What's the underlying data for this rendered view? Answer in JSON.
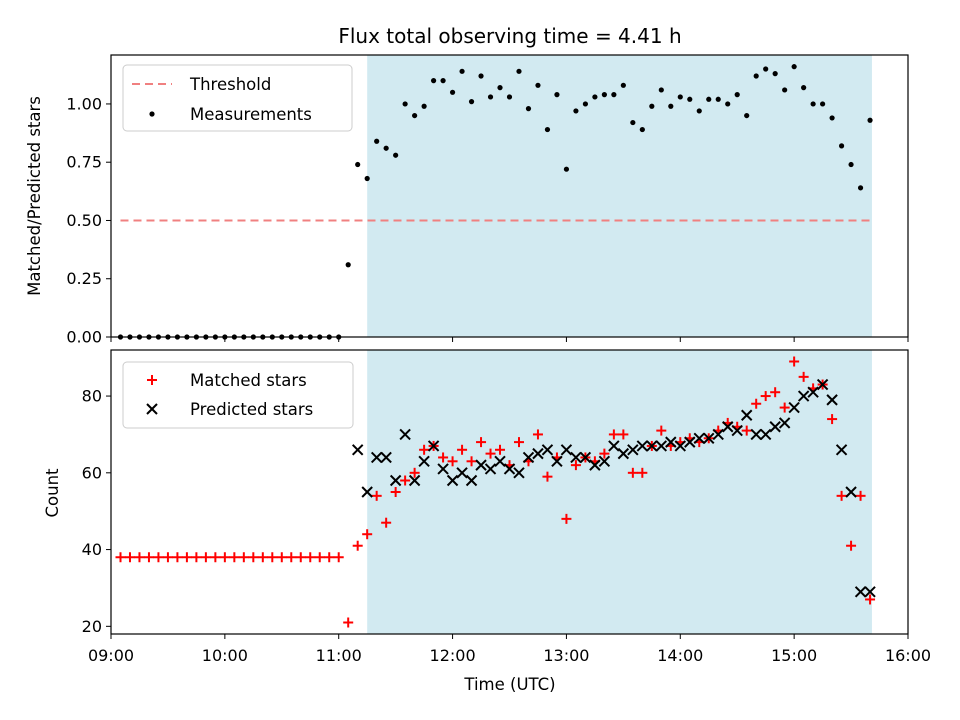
{
  "chart_data": [
    {
      "type": "scatter",
      "title": "Flux total observing time = 4.41 h",
      "xlabel": "",
      "ylabel": "Matched/Predicted stars",
      "ylim": [
        0.0,
        1.21
      ],
      "yticks": [
        "0.00",
        "0.25",
        "0.50",
        "0.75",
        "1.00"
      ],
      "xlim": [
        "09:00",
        "16:00"
      ],
      "shaded_region": {
        "x_start": "11:15",
        "x_end": "15:41",
        "color": "#add8e6"
      },
      "legend": {
        "placement": "top-left",
        "entries": [
          "Threshold",
          "Measurements"
        ]
      },
      "threshold": {
        "name": "Threshold",
        "y": 0.5,
        "x_start": "09:05",
        "x_end": "15:41",
        "color": "#f08080"
      },
      "series": [
        {
          "name": "Measurements",
          "color": "#000000",
          "x": [
            "09:05",
            "09:10",
            "09:15",
            "09:20",
            "09:25",
            "09:30",
            "09:35",
            "09:40",
            "09:45",
            "09:50",
            "09:55",
            "10:00",
            "10:05",
            "10:10",
            "10:15",
            "10:20",
            "10:25",
            "10:30",
            "10:35",
            "10:40",
            "10:45",
            "10:50",
            "10:55",
            "11:00",
            "11:05",
            "11:10",
            "11:15",
            "11:20",
            "11:25",
            "11:30",
            "11:35",
            "11:40",
            "11:45",
            "11:50",
            "11:55",
            "12:00",
            "12:05",
            "12:10",
            "12:15",
            "12:20",
            "12:25",
            "12:30",
            "12:35",
            "12:40",
            "12:45",
            "12:50",
            "12:55",
            "13:00",
            "13:05",
            "13:10",
            "13:15",
            "13:20",
            "13:25",
            "13:30",
            "13:35",
            "13:40",
            "13:45",
            "13:50",
            "13:55",
            "14:00",
            "14:05",
            "14:10",
            "14:15",
            "14:20",
            "14:25",
            "14:30",
            "14:35",
            "14:40",
            "14:45",
            "14:50",
            "14:55",
            "15:00",
            "15:05",
            "15:10",
            "15:15",
            "15:20",
            "15:25",
            "15:30",
            "15:35",
            "15:40"
          ],
          "y": [
            0,
            0,
            0,
            0,
            0,
            0,
            0,
            0,
            0,
            0,
            0,
            0,
            0,
            0,
            0,
            0,
            0,
            0,
            0,
            0,
            0,
            0,
            0,
            0,
            0.31,
            0.74,
            0.68,
            0.84,
            0.81,
            0.78,
            1.0,
            0.95,
            0.99,
            1.1,
            1.1,
            1.05,
            1.14,
            1.01,
            1.12,
            1.03,
            1.07,
            1.03,
            1.14,
            0.98,
            1.08,
            0.89,
            1.04,
            0.72,
            0.97,
            1.0,
            1.03,
            1.04,
            1.04,
            1.08,
            0.92,
            0.89,
            0.99,
            1.06,
            0.99,
            1.03,
            1.02,
            0.97,
            1.02,
            1.02,
            1.0,
            1.04,
            0.95,
            1.12,
            1.15,
            1.13,
            1.06,
            1.16,
            1.07,
            1.0,
            1.0,
            0.94,
            0.82,
            0.74,
            0.64,
            0.93
          ]
        }
      ]
    },
    {
      "type": "scatter",
      "title": "",
      "xlabel": "Time (UTC)",
      "ylabel": "Count",
      "ylim": [
        18,
        92
      ],
      "yticks": [
        "20",
        "40",
        "60",
        "80"
      ],
      "xlim": [
        "09:00",
        "16:00"
      ],
      "xticks": [
        "09:00",
        "10:00",
        "11:00",
        "12:00",
        "13:00",
        "14:00",
        "15:00",
        "16:00"
      ],
      "shaded_region": {
        "x_start": "11:15",
        "x_end": "15:41",
        "color": "#add8e6"
      },
      "legend": {
        "placement": "top-left",
        "entries": [
          "Matched stars",
          "Predicted stars"
        ]
      },
      "series": [
        {
          "name": "Matched stars",
          "marker": "plus",
          "color": "#ff0000",
          "x": [
            "09:05",
            "09:10",
            "09:15",
            "09:20",
            "09:25",
            "09:30",
            "09:35",
            "09:40",
            "09:45",
            "09:50",
            "09:55",
            "10:00",
            "10:05",
            "10:10",
            "10:15",
            "10:20",
            "10:25",
            "10:30",
            "10:35",
            "10:40",
            "10:45",
            "10:50",
            "10:55",
            "11:00",
            "11:05",
            "11:10",
            "11:15",
            "11:20",
            "11:25",
            "11:30",
            "11:35",
            "11:40",
            "11:45",
            "11:50",
            "11:55",
            "12:00",
            "12:05",
            "12:10",
            "12:15",
            "12:20",
            "12:25",
            "12:30",
            "12:35",
            "12:40",
            "12:45",
            "12:50",
            "12:55",
            "13:00",
            "13:05",
            "13:10",
            "13:15",
            "13:20",
            "13:25",
            "13:30",
            "13:35",
            "13:40",
            "13:45",
            "13:50",
            "13:55",
            "14:00",
            "14:05",
            "14:10",
            "14:15",
            "14:20",
            "14:25",
            "14:30",
            "14:35",
            "14:40",
            "14:45",
            "14:50",
            "14:55",
            "15:00",
            "15:05",
            "15:10",
            "15:15",
            "15:20",
            "15:25",
            "15:30",
            "15:35",
            "15:40"
          ],
          "y": [
            38,
            38,
            38,
            38,
            38,
            38,
            38,
            38,
            38,
            38,
            38,
            38,
            38,
            38,
            38,
            38,
            38,
            38,
            38,
            38,
            38,
            38,
            38,
            38,
            21,
            41,
            44,
            54,
            47,
            55,
            58,
            60,
            66,
            67,
            64,
            63,
            66,
            63,
            68,
            65,
            66,
            62,
            68,
            63,
            70,
            59,
            64,
            48,
            62,
            64,
            63,
            65,
            70,
            70,
            60,
            60,
            67,
            71,
            67,
            68,
            69,
            68,
            69,
            71,
            73,
            72,
            71,
            78,
            80,
            81,
            77,
            89,
            85,
            82,
            83,
            74,
            54,
            41,
            54,
            27
          ]
        },
        {
          "name": "Predicted stars",
          "marker": "x",
          "color": "#000000",
          "x": [
            "11:10",
            "11:15",
            "11:20",
            "11:25",
            "11:30",
            "11:35",
            "11:40",
            "11:45",
            "11:50",
            "11:55",
            "12:00",
            "12:05",
            "12:10",
            "12:15",
            "12:20",
            "12:25",
            "12:30",
            "12:35",
            "12:40",
            "12:45",
            "12:50",
            "12:55",
            "13:00",
            "13:05",
            "13:10",
            "13:15",
            "13:20",
            "13:25",
            "13:30",
            "13:35",
            "13:40",
            "13:45",
            "13:50",
            "13:55",
            "14:00",
            "14:05",
            "14:10",
            "14:15",
            "14:20",
            "14:25",
            "14:30",
            "14:35",
            "14:40",
            "14:45",
            "14:50",
            "14:55",
            "15:00",
            "15:05",
            "15:10",
            "15:15",
            "15:20",
            "15:25",
            "15:30",
            "15:35",
            "15:40"
          ],
          "y": [
            66,
            55,
            64,
            64,
            58,
            70,
            58,
            63,
            67,
            61,
            58,
            60,
            58,
            62,
            61,
            63,
            61,
            60,
            64,
            65,
            66,
            63,
            66,
            64,
            64,
            62,
            63,
            67,
            65,
            66,
            67,
            67,
            67,
            68,
            67,
            68,
            69,
            69,
            70,
            72,
            71,
            75,
            70,
            70,
            72,
            73,
            77,
            80,
            81,
            83,
            79,
            66,
            55,
            29,
            29
          ]
        }
      ]
    }
  ]
}
